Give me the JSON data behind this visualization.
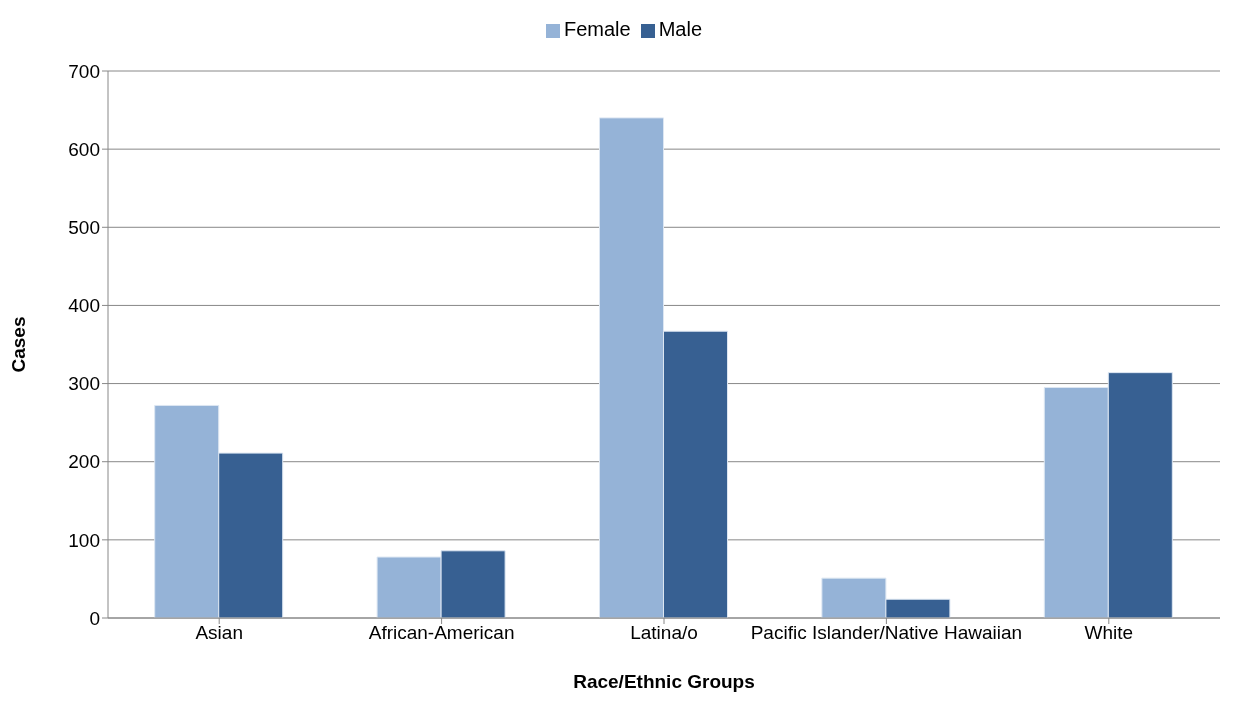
{
  "chart_data": {
    "type": "bar",
    "xlabel": "Race/Ethnic Groups",
    "ylabel": "Cases",
    "categories": [
      "Asian",
      "African-American",
      "Latina/o",
      "Pacific Islander/Native Hawaiian",
      "White"
    ],
    "series": [
      {
        "name": "Female",
        "color": "#95b3d7",
        "values": [
          272,
          78,
          640,
          51,
          295
        ]
      },
      {
        "name": "Male",
        "color": "#376092",
        "values": [
          211,
          86,
          367,
          24,
          314
        ]
      }
    ],
    "ylim": [
      0,
      700
    ],
    "yticks": [
      0,
      100,
      200,
      300,
      400,
      500,
      600,
      700
    ],
    "grid": "y",
    "legend": "top"
  }
}
